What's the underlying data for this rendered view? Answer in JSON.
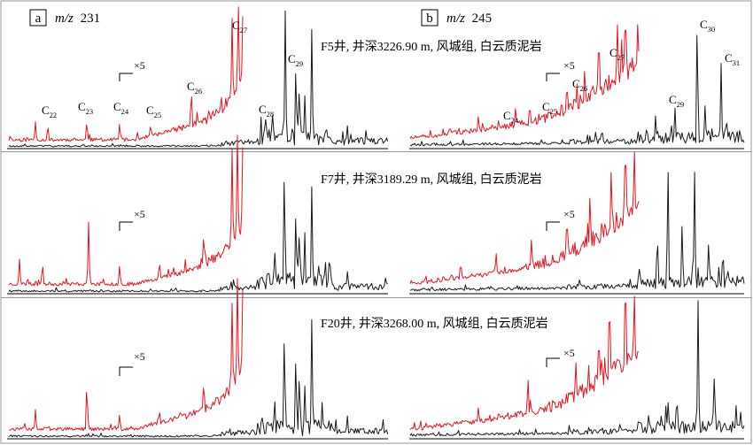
{
  "chart_data": {
    "type": "line",
    "panels": [
      {
        "letter": "a",
        "mz_prefix": "m/z",
        "mz_value": "231"
      },
      {
        "letter": "b",
        "mz_prefix": "m/z",
        "mz_value": "245"
      }
    ],
    "samples": [
      {
        "label": "F5井, 井深3226.90 m, 风城组, 白云质泥岩"
      },
      {
        "label": "F7井, 井深3189.29 m, 风城组, 白云质泥岩"
      },
      {
        "label": "F20井, 井深3268.00 m, 风城组, 白云质泥岩"
      }
    ],
    "magnification_label": "×5",
    "peak_labels_a": [
      {
        "base": "C",
        "sub": "22"
      },
      {
        "base": "C",
        "sub": "23"
      },
      {
        "base": "C",
        "sub": "24"
      },
      {
        "base": "C",
        "sub": "25"
      },
      {
        "base": "C",
        "sub": "26"
      },
      {
        "base": "C",
        "sub": "27"
      },
      {
        "base": "C",
        "sub": "28"
      },
      {
        "base": "C",
        "sub": "29"
      }
    ],
    "peak_labels_b": [
      {
        "base": "C",
        "sub": "24"
      },
      {
        "base": "C",
        "sub": "25"
      },
      {
        "base": "C",
        "sub": "26"
      },
      {
        "base": "C",
        "sub": "27"
      },
      {
        "base": "C",
        "sub": "29"
      },
      {
        "base": "C",
        "sub": "30"
      },
      {
        "base": "C",
        "sub": "31"
      }
    ],
    "series": [
      {
        "color": "#e8141e"
      },
      {
        "color": "#1a1a1a"
      }
    ]
  }
}
